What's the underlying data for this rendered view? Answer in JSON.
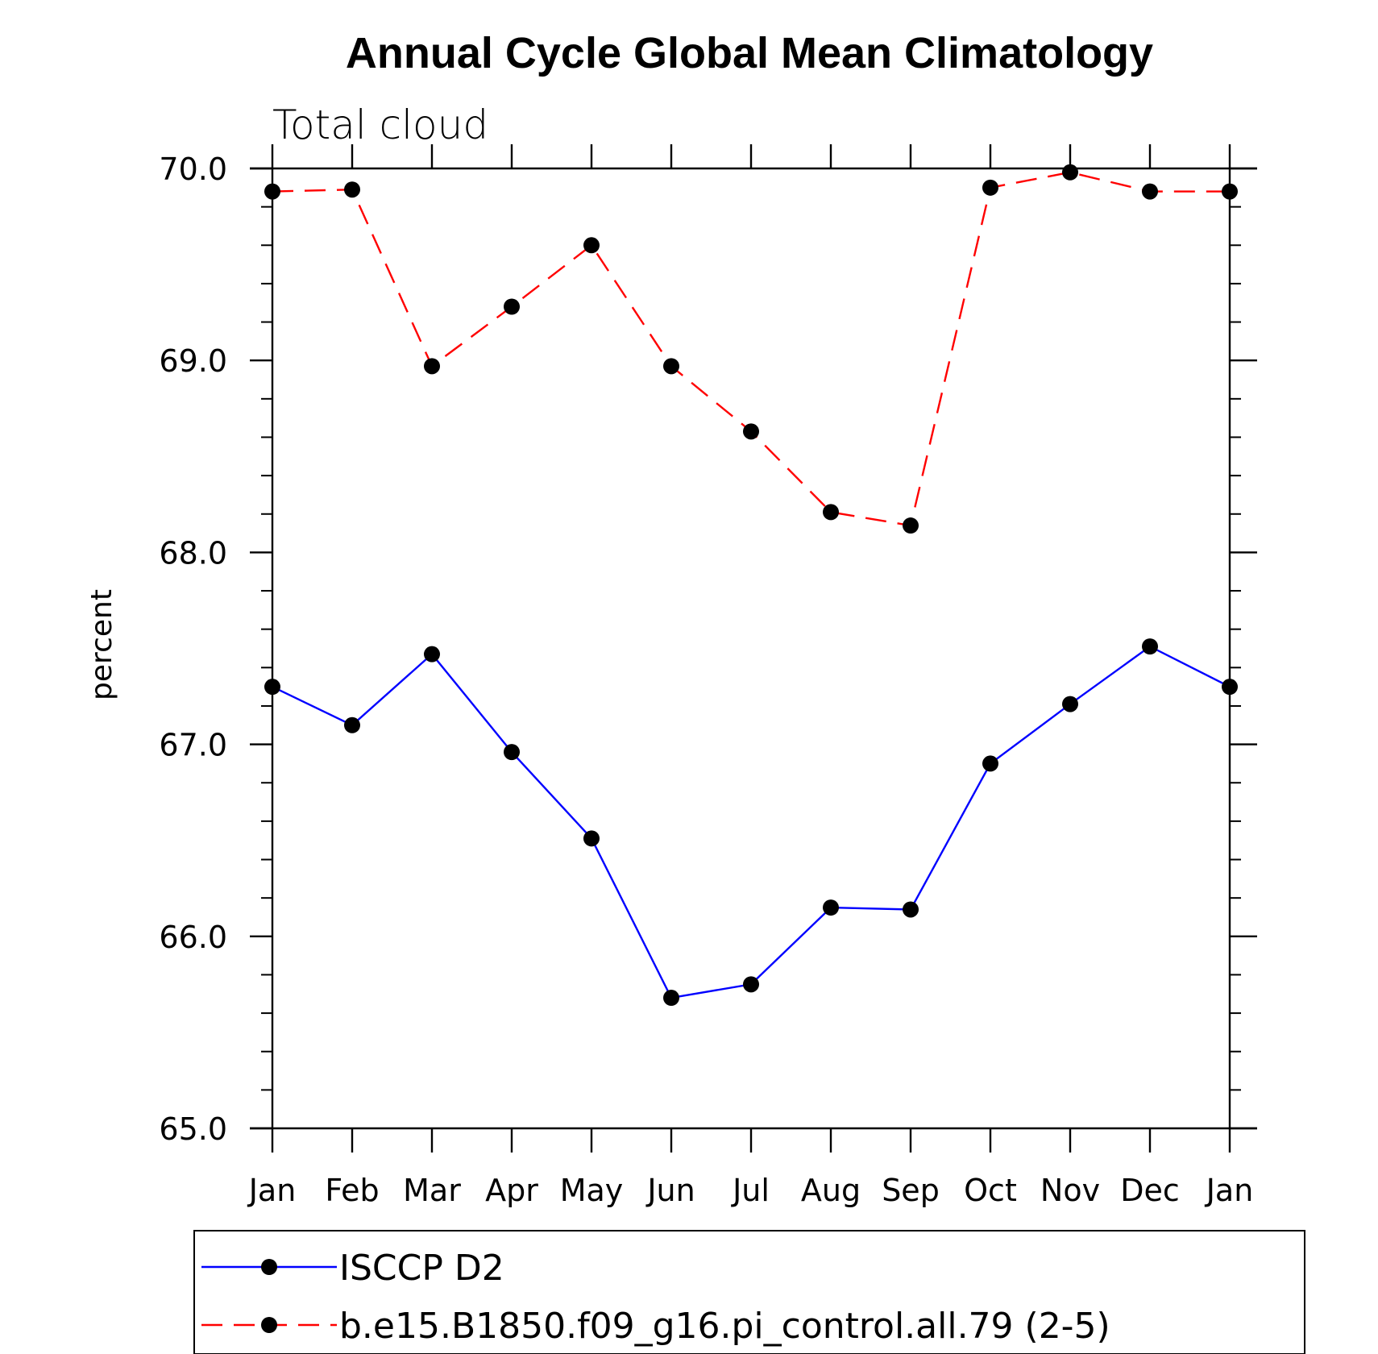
{
  "chart_data": {
    "type": "line",
    "title": "Annual Cycle Global Mean Climatology",
    "subtitle": "Total cloud",
    "xlabel": "",
    "ylabel": "percent",
    "categories": [
      "Jan",
      "Feb",
      "Mar",
      "Apr",
      "May",
      "Jun",
      "Jul",
      "Aug",
      "Sep",
      "Oct",
      "Nov",
      "Dec",
      "Jan"
    ],
    "ylim": [
      65.0,
      70.0
    ],
    "yticks": [
      "65.0",
      "66.0",
      "67.0",
      "68.0",
      "69.0",
      "70.0"
    ],
    "ytick_values": [
      65,
      66,
      67,
      68,
      69,
      70
    ],
    "yminor_step": 0.2,
    "grid": false,
    "legend_position": "bottom",
    "series": [
      {
        "name": "ISCCP D2",
        "color": "#0000ff",
        "dash": "solid",
        "marker": "filled-circle",
        "values": [
          67.3,
          67.1,
          67.47,
          66.96,
          66.51,
          65.68,
          65.75,
          66.15,
          66.14,
          66.9,
          67.21,
          67.51,
          67.3
        ]
      },
      {
        "name": "b.e15.B1850.f09_g16.pi_control.all.79 (2-5)",
        "color": "#ff0000",
        "dash": "dashed",
        "marker": "filled-circle",
        "values": [
          69.88,
          69.89,
          68.97,
          69.28,
          69.6,
          68.97,
          68.63,
          68.21,
          68.14,
          69.9,
          69.98,
          69.88,
          69.88
        ]
      }
    ]
  }
}
